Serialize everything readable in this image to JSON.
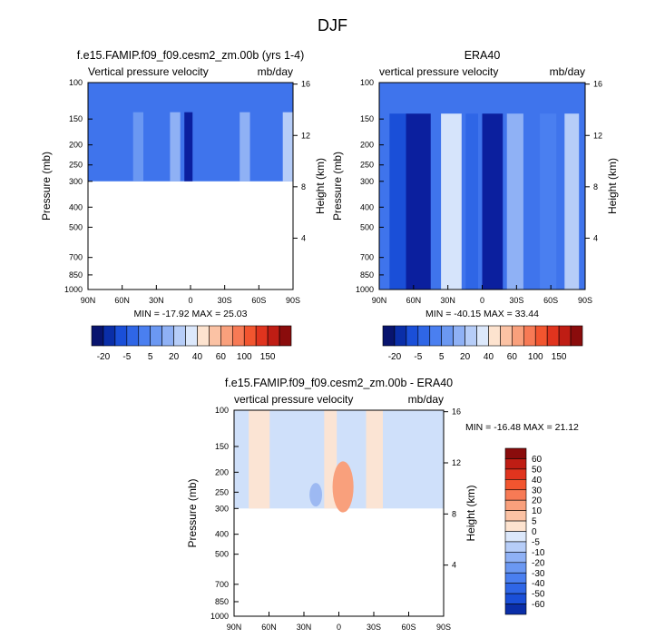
{
  "page_title": "DJF",
  "colors": {
    "blue_scale": [
      "#08146e",
      "#0a2ea8",
      "#1a4fd8",
      "#2f66e6",
      "#4a7ff0",
      "#6b98f2",
      "#8fb1f5",
      "#b6cdf8",
      "#dce8fb"
    ],
    "red_scale": [
      "#fde3cf",
      "#fbc2a4",
      "#f9a07c",
      "#f77a55",
      "#f2552f",
      "#e0341e",
      "#bf1d14",
      "#8a0c0c"
    ],
    "field_dark": "#0b1f9e",
    "field_mid": "#3f74ec",
    "field_light": "#d6e4fb",
    "diff_neg": "#cfe0fa",
    "diff_pos": "#fbe4d4"
  },
  "chart_data": [
    {
      "type": "heatmap",
      "title": "f.e15.FAMIP.f09_f09.cesm2_zm.00b (yrs 1-4)",
      "left_label": "Vertical pressure velocity",
      "right_label": "mb/day",
      "ylabel": "Pressure (mb)",
      "y2label": "Height (km)",
      "x_ticks": [
        "90N",
        "60N",
        "30N",
        "0",
        "30S",
        "60S",
        "90S"
      ],
      "y_ticks": [
        "100",
        "150",
        "200",
        "250",
        "300",
        "400",
        "500",
        "700",
        "850",
        "1000"
      ],
      "y2_ticks": [
        "16",
        "12",
        "8",
        "4"
      ],
      "data_pressure_range": [
        100,
        300
      ],
      "stats": "MIN = -17.92  MAX = 25.03",
      "colorbar": {
        "orientation": "horizontal",
        "labels": [
          "-20",
          "-5",
          "5",
          "20",
          "40",
          "60",
          "100",
          "150"
        ]
      }
    },
    {
      "type": "heatmap",
      "title": "ERA40",
      "left_label": "vertical pressure velocity",
      "right_label": "mb/day",
      "ylabel": "Pressure (mb)",
      "y2label": "Height (km)",
      "x_ticks": [
        "90N",
        "60N",
        "30N",
        "0",
        "30S",
        "60S",
        "90S"
      ],
      "y_ticks": [
        "100",
        "150",
        "200",
        "250",
        "300",
        "400",
        "500",
        "700",
        "850",
        "1000"
      ],
      "y2_ticks": [
        "16",
        "12",
        "8",
        "4"
      ],
      "data_pressure_range": [
        100,
        1000
      ],
      "stats": "MIN = -40.15  MAX = 33.44",
      "colorbar": {
        "orientation": "horizontal",
        "labels": [
          "-20",
          "-5",
          "5",
          "20",
          "40",
          "60",
          "100",
          "150"
        ]
      }
    },
    {
      "type": "heatmap",
      "title": "f.e15.FAMIP.f09_f09.cesm2_zm.00b - ERA40",
      "left_label": "vertical pressure velocity",
      "right_label": "mb/day",
      "ylabel": "Pressure (mb)",
      "y2label": "Height (km)",
      "x_ticks": [
        "90N",
        "60N",
        "30N",
        "0",
        "30S",
        "60S",
        "90S"
      ],
      "y_ticks": [
        "100",
        "150",
        "200",
        "250",
        "300",
        "400",
        "500",
        "700",
        "850",
        "1000"
      ],
      "y2_ticks": [
        "16",
        "12",
        "8",
        "4"
      ],
      "data_pressure_range": [
        100,
        300
      ],
      "stats": "MIN = -16.48  MAX = 21.12",
      "colorbar": {
        "orientation": "vertical",
        "labels": [
          "60",
          "50",
          "40",
          "30",
          "20",
          "10",
          "5",
          "0",
          "-5",
          "-10",
          "-20",
          "-30",
          "-40",
          "-50",
          "-60"
        ]
      }
    }
  ]
}
